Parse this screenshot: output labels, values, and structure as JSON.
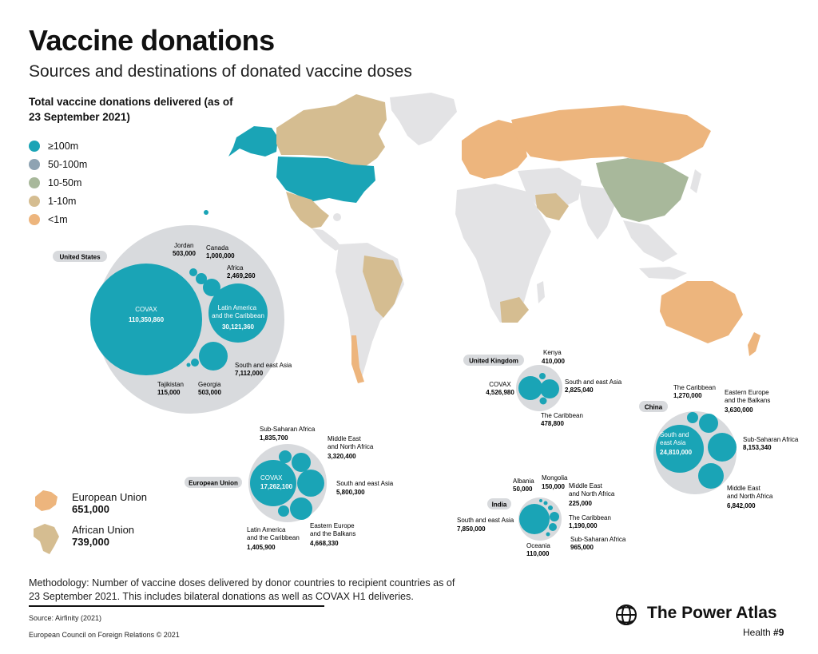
{
  "title": "Vaccine donations",
  "subtitle": "Sources and destinations of donated vaccine doses",
  "total_heading": "Total vaccine donations delivered (as of 23 September 2021)",
  "legend": [
    {
      "label": "≥100m",
      "color": "#1aa4b6"
    },
    {
      "label": "50-100m",
      "color": "#8ea3b2"
    },
    {
      "label": "10-50m",
      "color": "#a8b89b"
    },
    {
      "label": "1-10m",
      "color": "#d5bd91"
    },
    {
      "label": "<1m",
      "color": "#edb57d"
    }
  ],
  "colors": {
    "teal": "#1aa4b6",
    "grey_circle": "#d8dadd",
    "land": "#e3e3e5",
    "beige": "#d5bd91",
    "orange": "#edb57d",
    "olive": "#a8b89b"
  },
  "map_regions": [
    {
      "name": "United States",
      "tier": "≥100m"
    },
    {
      "name": "China",
      "tier": "10-50m"
    },
    {
      "name": "Canada",
      "tier": "1-10m"
    },
    {
      "name": "Mexico",
      "tier": "1-10m"
    },
    {
      "name": "Brazil",
      "tier": "1-10m"
    },
    {
      "name": "South Africa",
      "tier": "1-10m"
    },
    {
      "name": "Australia",
      "tier": "<1m"
    },
    {
      "name": "Russia",
      "tier": "<1m"
    },
    {
      "name": "Europe",
      "tier": "<1m"
    },
    {
      "name": "Saudi Arabia",
      "tier": "1-10m"
    },
    {
      "name": "Greenland",
      "tier": ""
    }
  ],
  "donors": [
    {
      "name": "United States",
      "destinations": [
        {
          "label": "COVAX",
          "value": "110,350,860"
        },
        {
          "label": "Latin America and the Caribbean",
          "value": "30,121,360"
        },
        {
          "label": "South and east Asia",
          "value": "7,112,000"
        },
        {
          "label": "Africa",
          "value": "2,469,260"
        },
        {
          "label": "Canada",
          "value": "1,000,000"
        },
        {
          "label": "Jordan",
          "value": "503,000"
        },
        {
          "label": "Georgia",
          "value": "503,000"
        },
        {
          "label": "Tajikistan",
          "value": "115,000"
        }
      ]
    },
    {
      "name": "United Kingdom",
      "destinations": [
        {
          "label": "COVAX",
          "value": "4,526,980"
        },
        {
          "label": "South and east Asia",
          "value": "2,825,040"
        },
        {
          "label": "The Caribbean",
          "value": "478,800"
        },
        {
          "label": "Kenya",
          "value": "410,000"
        }
      ]
    },
    {
      "name": "China",
      "destinations": [
        {
          "label": "South and east Asia",
          "value": "24,810,000"
        },
        {
          "label": "Sub-Saharan Africa",
          "value": "8,153,340"
        },
        {
          "label": "Middle East and North Africa",
          "value": "6,842,000"
        },
        {
          "label": "Eastern Europe and the Balkans",
          "value": "3,630,000"
        },
        {
          "label": "The Caribbean",
          "value": "1,270,000"
        }
      ]
    },
    {
      "name": "European Union",
      "destinations": [
        {
          "label": "COVAX",
          "value": "17,262,100"
        },
        {
          "label": "South and east Asia",
          "value": "5,800,300"
        },
        {
          "label": "Eastern Europe and the Balkans",
          "value": "4,668,330"
        },
        {
          "label": "Middle East and North Africa",
          "value": "3,320,400"
        },
        {
          "label": "Sub-Saharan Africa",
          "value": "1,835,700"
        },
        {
          "label": "Latin America and the Caribbean",
          "value": "1,405,900"
        }
      ]
    },
    {
      "name": "India",
      "destinations": [
        {
          "label": "South and east Asia",
          "value": "7,850,000"
        },
        {
          "label": "The Caribbean",
          "value": "1,190,000"
        },
        {
          "label": "Sub-Saharan Africa",
          "value": "965,000"
        },
        {
          "label": "Middle East and North Africa",
          "value": "225,000"
        },
        {
          "label": "Mongolia",
          "value": "150,000"
        },
        {
          "label": "Oceania",
          "value": "110,000"
        },
        {
          "label": "Albania",
          "value": "50,000"
        }
      ]
    }
  ],
  "unions": [
    {
      "name": "European Union",
      "value": "651,000"
    },
    {
      "name": "African Union",
      "value": "739,000"
    }
  ],
  "methodology": "Methodology: Number of vaccine doses delivered by donor countries to recipient countries as of 23 September 2021. This includes bilateral donations as well as COVAX H1 deliveries.",
  "source": "Source: Airfinity (2021)",
  "copyright": "European Council on Foreign Relations © 2021",
  "brand": {
    "name": "The Power Atlas",
    "series": "Health",
    "number": "#9",
    "icon": "globe-icon"
  }
}
